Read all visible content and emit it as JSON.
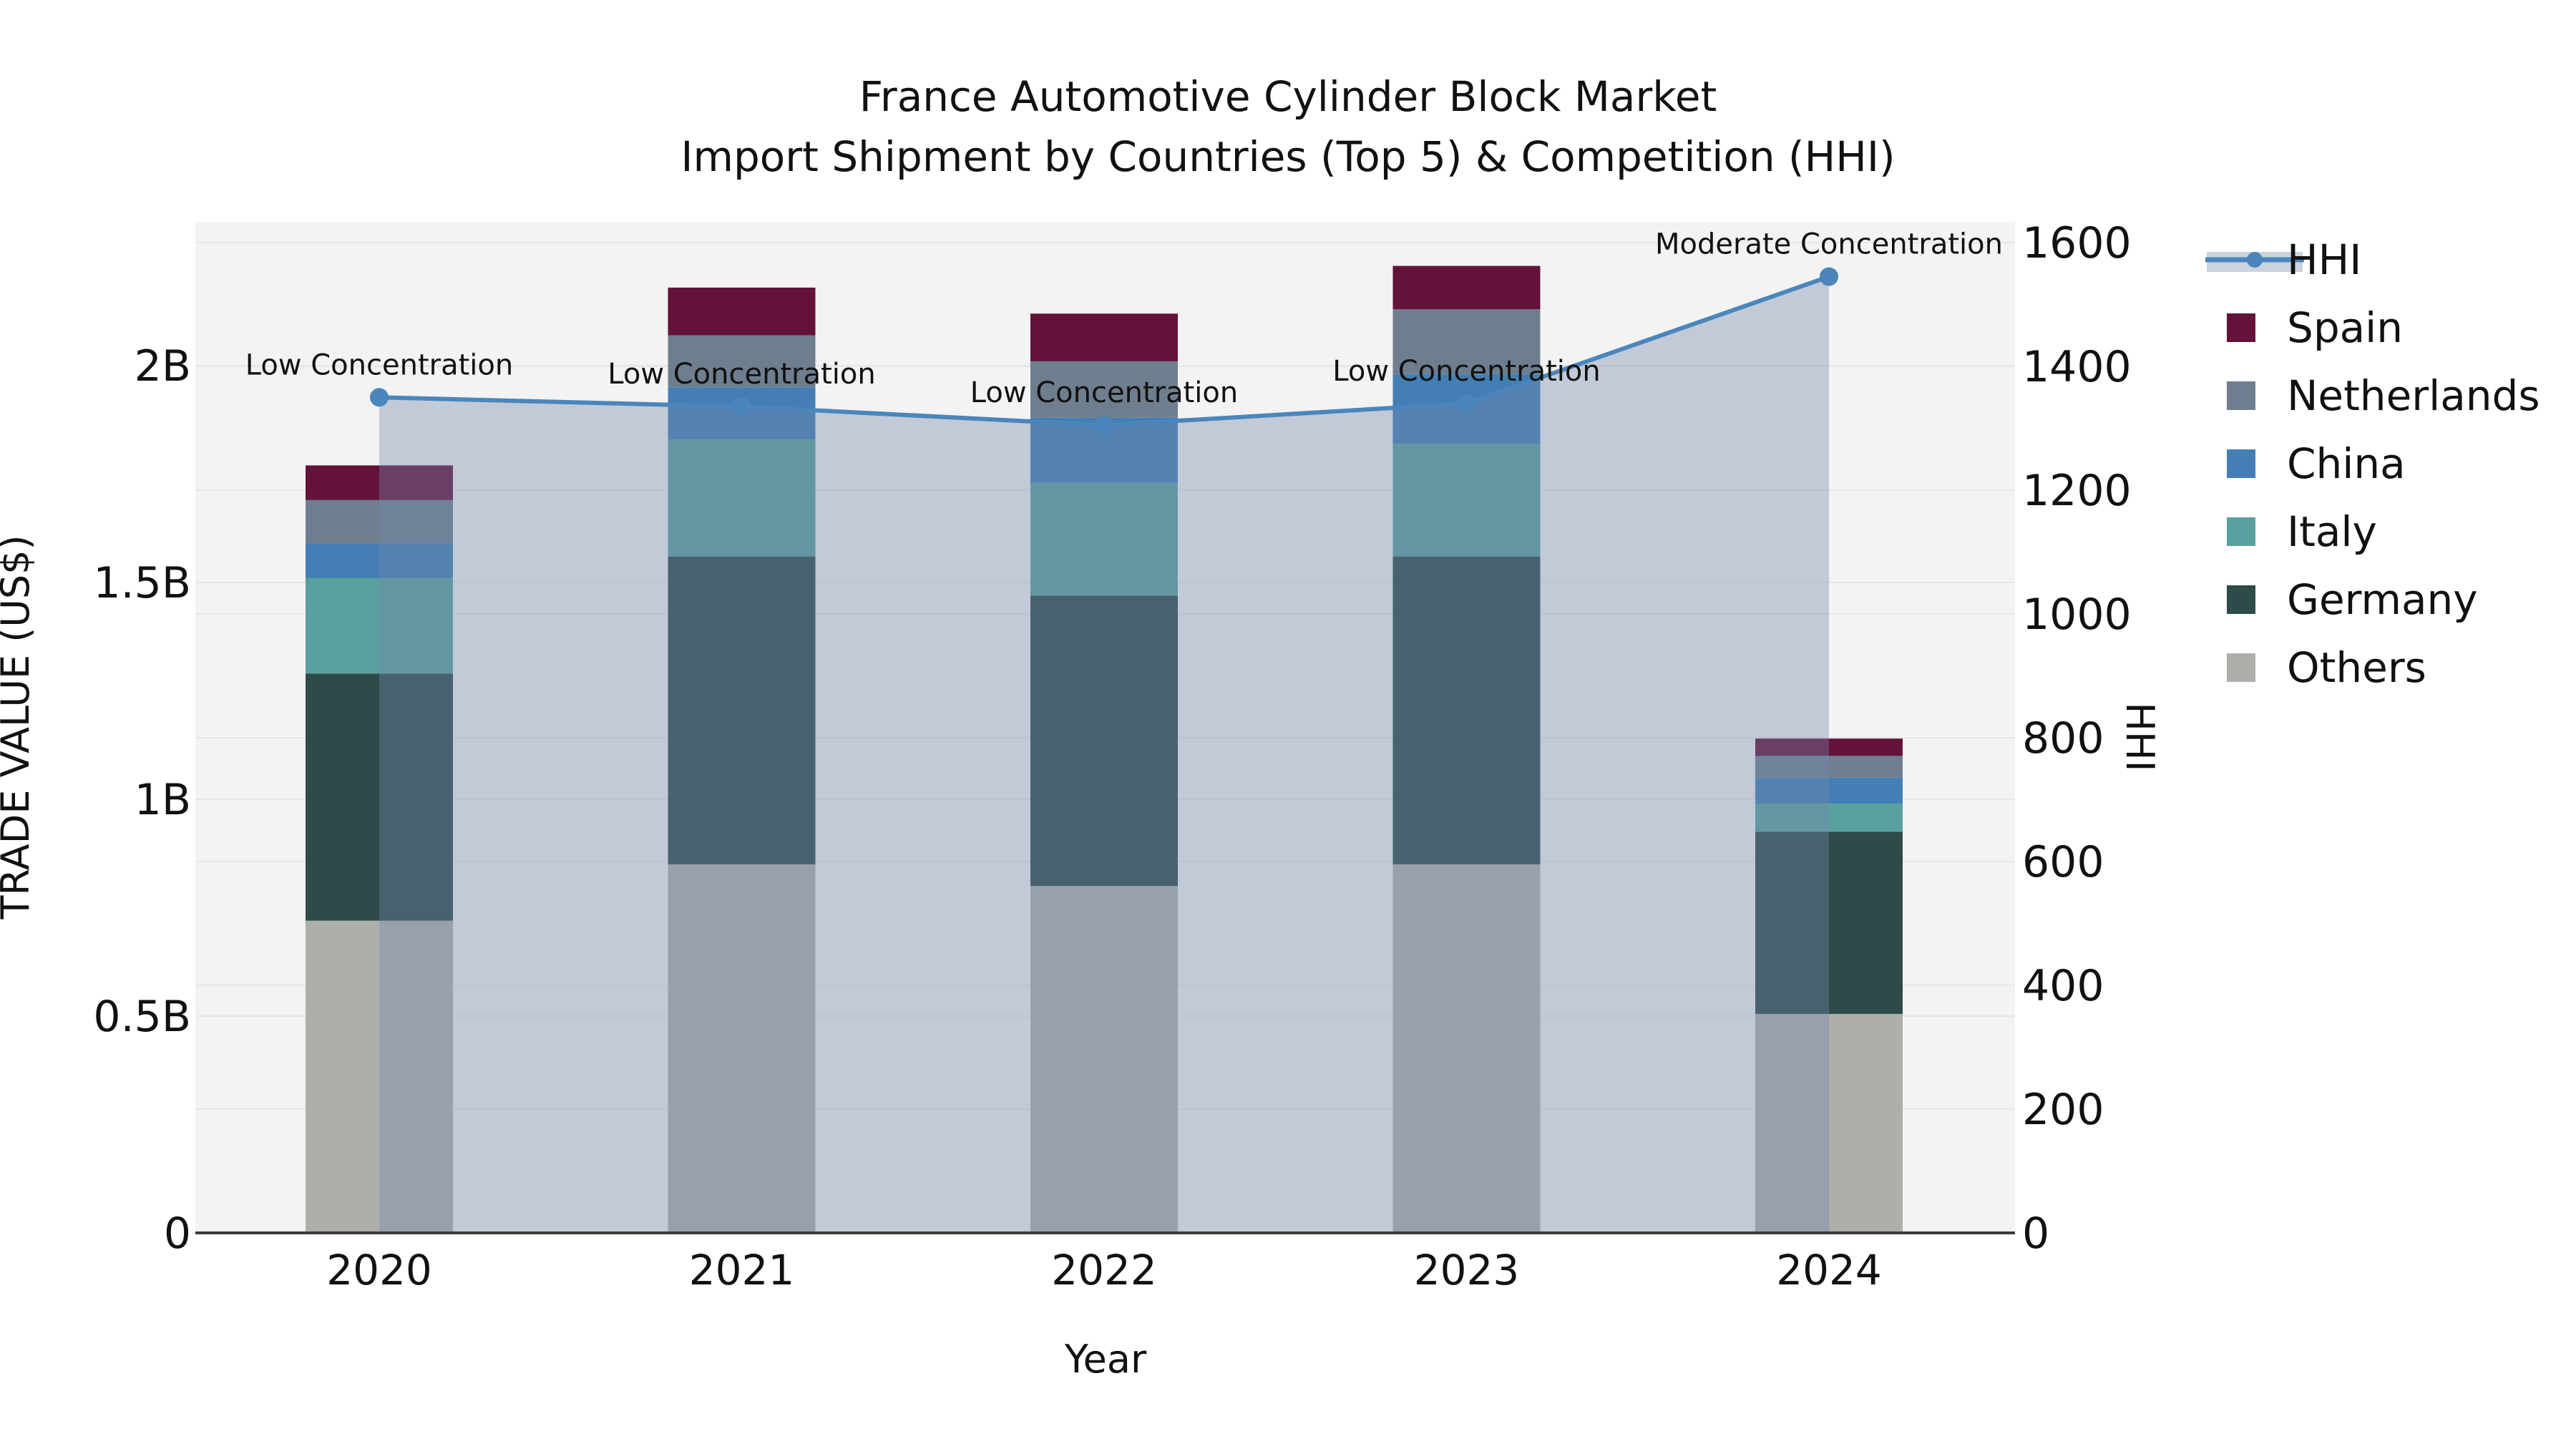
{
  "title": {
    "line1": "France Automotive Cylinder Block Market",
    "line2": "Import Shipment by Countries (Top 5) & Competition (HHI)"
  },
  "axes": {
    "x": {
      "label": "Year",
      "ticks": [
        "2020",
        "2021",
        "2022",
        "2023",
        "2024"
      ]
    },
    "y_left": {
      "label": "TRADE VALUE (US$)",
      "ticks": [
        "0",
        "0.5B",
        "1B",
        "1.5B",
        "2B"
      ],
      "tick_values": [
        0,
        0.5,
        1,
        1.5,
        2
      ]
    },
    "y_right": {
      "label": "HHI",
      "ticks": [
        "0",
        "200",
        "400",
        "600",
        "800",
        "1000",
        "1200",
        "1400",
        "1600"
      ],
      "tick_values": [
        0,
        200,
        400,
        600,
        800,
        1000,
        1200,
        1400,
        1600
      ]
    }
  },
  "legend": {
    "items": [
      {
        "label": "HHI",
        "type": "line",
        "color": "#4a86bb"
      },
      {
        "label": "Spain",
        "type": "patch",
        "color": "#64123a"
      },
      {
        "label": "Netherlands",
        "type": "patch",
        "color": "#6f7e8e"
      },
      {
        "label": "China",
        "type": "patch",
        "color": "#437fb4"
      },
      {
        "label": "Italy",
        "type": "patch",
        "color": "#59a09e"
      },
      {
        "label": "Germany",
        "type": "patch",
        "color": "#2d4b48"
      },
      {
        "label": "Others",
        "type": "patch",
        "color": "#adafab"
      }
    ]
  },
  "annotations": [
    {
      "text": "Low Concentration",
      "year": "2020"
    },
    {
      "text": "Low Concentration",
      "year": "2021"
    },
    {
      "text": "Low Concentration",
      "year": "2022"
    },
    {
      "text": "Low Concentration",
      "year": "2023"
    },
    {
      "text": "Moderate Concentration",
      "year": "2024"
    }
  ],
  "chart_data": {
    "type": "bar+line",
    "title": "France Automotive Cylinder Block Market — Import Shipment by Countries (Top 5) & Competition (HHI)",
    "categories": [
      "2020",
      "2021",
      "2022",
      "2023",
      "2024"
    ],
    "xlabel": "Year",
    "ylabel_left": "TRADE VALUE (US$)",
    "ylabel_right": "HHI",
    "ylim_left_B": [
      0,
      2.33
    ],
    "ylim_right": [
      0,
      1630
    ],
    "grid": true,
    "legend_position": "right-outside",
    "bar_unit": "billion US$",
    "stack_order": "bottom to top",
    "series": [
      {
        "name": "Others",
        "type": "bar",
        "color": "#adafab",
        "values": [
          0.72,
          0.85,
          0.8,
          0.85,
          0.505
        ]
      },
      {
        "name": "Germany",
        "type": "bar",
        "color": "#2d4b48",
        "values": [
          0.57,
          0.71,
          0.67,
          0.71,
          0.42
        ]
      },
      {
        "name": "Italy",
        "type": "bar",
        "color": "#59a09e",
        "values": [
          0.22,
          0.27,
          0.26,
          0.26,
          0.065
        ]
      },
      {
        "name": "China",
        "type": "bar",
        "color": "#437fb4",
        "values": [
          0.08,
          0.12,
          0.15,
          0.16,
          0.06
        ]
      },
      {
        "name": "Netherlands",
        "type": "bar",
        "color": "#6f7e8e",
        "values": [
          0.1,
          0.12,
          0.13,
          0.15,
          0.05
        ]
      },
      {
        "name": "Spain",
        "type": "bar",
        "color": "#64123a",
        "values": [
          0.08,
          0.11,
          0.11,
          0.1,
          0.04
        ]
      }
    ],
    "bar_totals_B": [
      1.77,
      2.18,
      2.12,
      2.23,
      1.14
    ],
    "line_series": {
      "name": "HHI",
      "axis": "right",
      "color": "#4a86bb",
      "area_fill": "rgba(116,136,174,0.38)",
      "values": [
        1350,
        1335,
        1305,
        1340,
        1545
      ]
    },
    "colors": {
      "plot_background": "#f3f3f3",
      "gridline": "#e7e7e7",
      "axis_line": "#3a3a3a",
      "legend_area_key": "#ccd3dd"
    }
  }
}
